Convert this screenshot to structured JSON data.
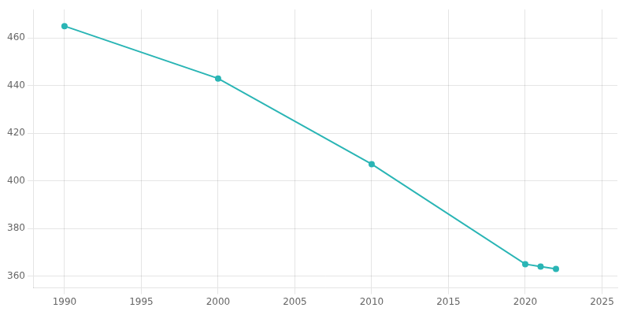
{
  "chart_data": {
    "type": "line",
    "x": [
      1990,
      2000,
      2010,
      2020,
      2021,
      2022
    ],
    "values": [
      465,
      443,
      407,
      365,
      364,
      363
    ],
    "color": "#2ab5b5",
    "marker": "circle",
    "xlim": [
      1988,
      2026
    ],
    "xticks": [
      1990,
      1995,
      2000,
      2005,
      2010,
      2015,
      2020,
      2025
    ],
    "ylim": [
      355,
      472
    ],
    "yticks": [
      360,
      380,
      400,
      420,
      440,
      460
    ],
    "grid": true
  }
}
